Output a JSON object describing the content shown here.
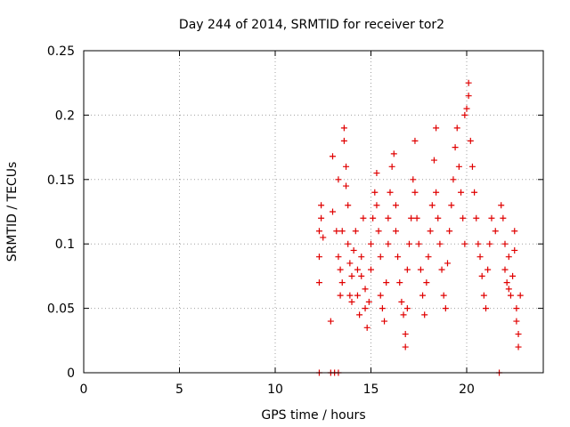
{
  "chart_data": {
    "type": "scatter",
    "title": "Day 244 of 2014, SRMTID for receiver tor2",
    "xlabel": "GPS time / hours",
    "ylabel": "SRMTID / TECUs",
    "xlim": [
      0,
      24
    ],
    "ylim": [
      0,
      0.25
    ],
    "x_ticks": [
      0,
      5,
      10,
      15,
      20
    ],
    "x_tick_labels": [
      "0",
      "5",
      "10",
      "15",
      "20"
    ],
    "y_ticks": [
      0,
      0.05,
      0.1,
      0.15,
      0.2,
      0.25
    ],
    "y_tick_labels": [
      "0",
      "0.05",
      "0.1",
      "0.15",
      "0.2",
      "0.25"
    ],
    "grid": true,
    "marker": "+",
    "series": [
      {
        "color": "#e00000",
        "points": [
          [
            12.3,
            0.0
          ],
          [
            12.9,
            0.0
          ],
          [
            13.1,
            0.0
          ],
          [
            13.3,
            0.0
          ],
          [
            21.7,
            0.0
          ],
          [
            12.3,
            0.07
          ],
          [
            12.3,
            0.09
          ],
          [
            12.3,
            0.11
          ],
          [
            12.4,
            0.12
          ],
          [
            12.4,
            0.13
          ],
          [
            12.5,
            0.105
          ],
          [
            12.9,
            0.04
          ],
          [
            13.0,
            0.125
          ],
          [
            13.0,
            0.168
          ],
          [
            13.2,
            0.11
          ],
          [
            13.3,
            0.09
          ],
          [
            13.3,
            0.15
          ],
          [
            13.4,
            0.08
          ],
          [
            13.4,
            0.06
          ],
          [
            13.5,
            0.07
          ],
          [
            13.5,
            0.11
          ],
          [
            13.6,
            0.19
          ],
          [
            13.6,
            0.18
          ],
          [
            13.7,
            0.16
          ],
          [
            13.7,
            0.145
          ],
          [
            13.8,
            0.13
          ],
          [
            13.8,
            0.1
          ],
          [
            13.9,
            0.085
          ],
          [
            13.9,
            0.06
          ],
          [
            14.0,
            0.055
          ],
          [
            14.0,
            0.075
          ],
          [
            14.1,
            0.095
          ],
          [
            14.2,
            0.11
          ],
          [
            14.3,
            0.08
          ],
          [
            14.3,
            0.06
          ],
          [
            14.4,
            0.045
          ],
          [
            14.5,
            0.075
          ],
          [
            14.5,
            0.09
          ],
          [
            14.6,
            0.12
          ],
          [
            14.7,
            0.065
          ],
          [
            14.7,
            0.05
          ],
          [
            14.8,
            0.035
          ],
          [
            14.9,
            0.055
          ],
          [
            15.0,
            0.08
          ],
          [
            15.0,
            0.1
          ],
          [
            15.1,
            0.12
          ],
          [
            15.2,
            0.14
          ],
          [
            15.3,
            0.155
          ],
          [
            15.3,
            0.13
          ],
          [
            15.4,
            0.11
          ],
          [
            15.5,
            0.09
          ],
          [
            15.5,
            0.06
          ],
          [
            15.6,
            0.05
          ],
          [
            15.7,
            0.04
          ],
          [
            15.8,
            0.07
          ],
          [
            15.9,
            0.1
          ],
          [
            15.9,
            0.12
          ],
          [
            16.0,
            0.14
          ],
          [
            16.1,
            0.16
          ],
          [
            16.2,
            0.17
          ],
          [
            16.3,
            0.13
          ],
          [
            16.3,
            0.11
          ],
          [
            16.4,
            0.09
          ],
          [
            16.5,
            0.07
          ],
          [
            16.6,
            0.055
          ],
          [
            16.7,
            0.045
          ],
          [
            16.8,
            0.03
          ],
          [
            16.8,
            0.02
          ],
          [
            16.9,
            0.05
          ],
          [
            16.9,
            0.08
          ],
          [
            17.0,
            0.1
          ],
          [
            17.1,
            0.12
          ],
          [
            17.2,
            0.15
          ],
          [
            17.3,
            0.18
          ],
          [
            17.3,
            0.14
          ],
          [
            17.4,
            0.12
          ],
          [
            17.5,
            0.1
          ],
          [
            17.6,
            0.08
          ],
          [
            17.7,
            0.06
          ],
          [
            17.8,
            0.045
          ],
          [
            17.9,
            0.07
          ],
          [
            18.0,
            0.09
          ],
          [
            18.1,
            0.11
          ],
          [
            18.2,
            0.13
          ],
          [
            18.3,
            0.165
          ],
          [
            18.4,
            0.19
          ],
          [
            18.4,
            0.14
          ],
          [
            18.5,
            0.12
          ],
          [
            18.6,
            0.1
          ],
          [
            18.7,
            0.08
          ],
          [
            18.8,
            0.06
          ],
          [
            18.9,
            0.05
          ],
          [
            19.0,
            0.085
          ],
          [
            19.1,
            0.11
          ],
          [
            19.2,
            0.13
          ],
          [
            19.3,
            0.15
          ],
          [
            19.4,
            0.175
          ],
          [
            19.5,
            0.19
          ],
          [
            19.6,
            0.16
          ],
          [
            19.7,
            0.14
          ],
          [
            19.8,
            0.12
          ],
          [
            19.9,
            0.1
          ],
          [
            19.9,
            0.2
          ],
          [
            20.0,
            0.205
          ],
          [
            20.1,
            0.225
          ],
          [
            20.1,
            0.215
          ],
          [
            20.2,
            0.18
          ],
          [
            20.3,
            0.16
          ],
          [
            20.4,
            0.14
          ],
          [
            20.5,
            0.12
          ],
          [
            20.6,
            0.1
          ],
          [
            20.7,
            0.09
          ],
          [
            20.8,
            0.075
          ],
          [
            20.9,
            0.06
          ],
          [
            21.0,
            0.05
          ],
          [
            21.1,
            0.08
          ],
          [
            21.2,
            0.1
          ],
          [
            21.3,
            0.12
          ],
          [
            21.5,
            0.11
          ],
          [
            21.8,
            0.13
          ],
          [
            21.9,
            0.12
          ],
          [
            22.0,
            0.1
          ],
          [
            22.0,
            0.08
          ],
          [
            22.1,
            0.07
          ],
          [
            22.2,
            0.065
          ],
          [
            22.2,
            0.09
          ],
          [
            22.3,
            0.06
          ],
          [
            22.4,
            0.075
          ],
          [
            22.5,
            0.11
          ],
          [
            22.5,
            0.095
          ],
          [
            22.6,
            0.05
          ],
          [
            22.6,
            0.04
          ],
          [
            22.7,
            0.03
          ],
          [
            22.7,
            0.02
          ],
          [
            22.8,
            0.06
          ]
        ]
      }
    ]
  }
}
